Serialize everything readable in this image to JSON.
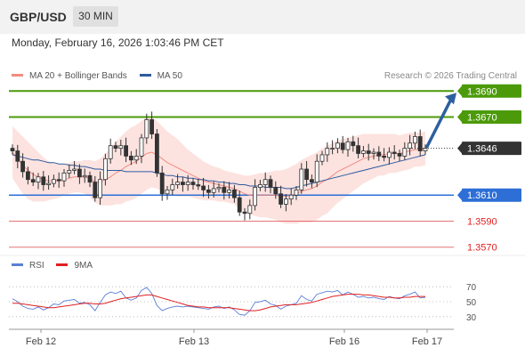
{
  "header": {
    "pair": "GBP/USD",
    "timeframe": "30 MIN"
  },
  "datetime": "Monday, February 16, 2026 1:03:46 PM CET",
  "legend": [
    {
      "label": "MA 20 + Bollinger Bands",
      "color": "#f28b82"
    },
    {
      "label": "MA 50",
      "color": "#2e5a9e"
    }
  ],
  "credit": "Research © 2026 Trading Central",
  "rsi_legend": [
    {
      "label": "RSI",
      "color": "#5b7fd6"
    },
    {
      "label": "9MA",
      "color": "#e02020"
    }
  ],
  "chart_data": {
    "type": "candlestick",
    "x_labels": [
      "Feb 12",
      "Feb 13",
      "Feb 16",
      "Feb 17"
    ],
    "price_levels": [
      {
        "value": 1.369,
        "label": "1.3690",
        "role": "resistance",
        "color": "#4c9a0a"
      },
      {
        "value": 1.367,
        "label": "1.3670",
        "role": "resistance",
        "color": "#4c9a0a"
      },
      {
        "value": 1.3646,
        "label": "1.3646",
        "role": "last",
        "color": "#333333"
      },
      {
        "value": 1.361,
        "label": "1.3610",
        "role": "pivot",
        "color": "#2d6fd6"
      },
      {
        "value": 1.359,
        "label": "1.3590",
        "role": "support",
        "color": "#e05050"
      },
      {
        "value": 1.357,
        "label": "1.3570",
        "role": "support",
        "color": "#e05050"
      }
    ],
    "closes": [
      1.3644,
      1.3636,
      1.3628,
      1.3622,
      1.362,
      1.3624,
      1.3618,
      1.3619,
      1.3622,
      1.3621,
      1.3627,
      1.3629,
      1.363,
      1.3624,
      1.3625,
      1.362,
      1.3608,
      1.3622,
      1.3638,
      1.3648,
      1.3646,
      1.3648,
      1.364,
      1.3637,
      1.364,
      1.3654,
      1.3668,
      1.3657,
      1.3627,
      1.3611,
      1.3614,
      1.3618,
      1.362,
      1.3618,
      1.362,
      1.3618,
      1.3617,
      1.3614,
      1.3612,
      1.3615,
      1.3616,
      1.3612,
      1.3614,
      1.3608,
      1.3597,
      1.3596,
      1.3602,
      1.3616,
      1.3618,
      1.3622,
      1.3616,
      1.3611,
      1.3603,
      1.3607,
      1.361,
      1.3614,
      1.363,
      1.3622,
      1.362,
      1.3636,
      1.3641,
      1.3646,
      1.3646,
      1.365,
      1.3645,
      1.3651,
      1.3648,
      1.3642,
      1.3644,
      1.3642,
      1.3643,
      1.364,
      1.3639,
      1.3643,
      1.3642,
      1.364,
      1.3646,
      1.365,
      1.3655,
      1.3644,
      1.3646
    ],
    "ma20": [
      1.3643,
      1.3638,
      1.3633,
      1.3629,
      1.3626,
      1.3624,
      1.3622,
      1.3621,
      1.3621,
      1.3621,
      1.3622,
      1.3623,
      1.3624,
      1.3624,
      1.3624,
      1.3623,
      1.362,
      1.362,
      1.3622,
      1.3624,
      1.3627,
      1.3629,
      1.3632,
      1.3634,
      1.3636,
      1.3639,
      1.3642,
      1.3643,
      1.3641,
      1.3638,
      1.3635,
      1.3633,
      1.3631,
      1.3629,
      1.3627,
      1.3625,
      1.3623,
      1.3621,
      1.362,
      1.3619,
      1.3618,
      1.3617,
      1.3616,
      1.3615,
      1.3613,
      1.3611,
      1.361,
      1.361,
      1.361,
      1.361,
      1.361,
      1.361,
      1.3609,
      1.3609,
      1.361,
      1.3611,
      1.3613,
      1.3614,
      1.3615,
      1.3617,
      1.362,
      1.3622,
      1.3625,
      1.3628,
      1.363,
      1.3632,
      1.3634,
      1.3636,
      1.3638,
      1.3639,
      1.364,
      1.3641,
      1.3641,
      1.3642,
      1.3642,
      1.3642,
      1.3643,
      1.3644,
      1.3645,
      1.3645,
      1.3646
    ],
    "ma50": [
      1.3641,
      1.364,
      1.3639,
      1.3638,
      1.3637,
      1.3637,
      1.3636,
      1.3635,
      1.3635,
      1.3634,
      1.3634,
      1.3633,
      1.3633,
      1.3632,
      1.3632,
      1.3631,
      1.363,
      1.363,
      1.3629,
      1.3629,
      1.3629,
      1.3629,
      1.3628,
      1.3628,
      1.3628,
      1.3628,
      1.3628,
      1.3628,
      1.3627,
      1.3626,
      1.3625,
      1.3625,
      1.3624,
      1.3624,
      1.3623,
      1.3623,
      1.3622,
      1.3622,
      1.3621,
      1.3621,
      1.362,
      1.362,
      1.3619,
      1.3619,
      1.3618,
      1.3618,
      1.3617,
      1.3617,
      1.3617,
      1.3616,
      1.3616,
      1.3616,
      1.3616,
      1.3615,
      1.3615,
      1.3616,
      1.3617,
      1.3618,
      1.3619,
      1.362,
      1.3621,
      1.3622,
      1.3623,
      1.3624,
      1.3625,
      1.3626,
      1.3627,
      1.3628,
      1.3629,
      1.363,
      1.3631,
      1.3632,
      1.3633,
      1.3634,
      1.3635,
      1.3636,
      1.3637,
      1.3638,
      1.3639,
      1.364,
      1.3641
    ],
    "bb_width": [
      0.002,
      0.0021,
      0.0022,
      0.0022,
      0.0021,
      0.0019,
      0.0017,
      0.0015,
      0.0014,
      0.0013,
      0.0012,
      0.0012,
      0.0012,
      0.0012,
      0.0013,
      0.0014,
      0.0016,
      0.0018,
      0.002,
      0.0022,
      0.0024,
      0.0026,
      0.0027,
      0.0028,
      0.0028,
      0.0028,
      0.0028,
      0.0027,
      0.0026,
      0.0025,
      0.0024,
      0.0023,
      0.0022,
      0.002,
      0.0018,
      0.0017,
      0.0016,
      0.0015,
      0.0014,
      0.0013,
      0.0013,
      0.0012,
      0.0012,
      0.0012,
      0.0013,
      0.0014,
      0.0015,
      0.0016,
      0.0017,
      0.0017,
      0.0018,
      0.0019,
      0.002,
      0.0021,
      0.0022,
      0.0023,
      0.0024,
      0.0025,
      0.0026,
      0.0026,
      0.0026,
      0.0026,
      0.0025,
      0.0024,
      0.0023,
      0.0022,
      0.0021,
      0.002,
      0.0019,
      0.0018,
      0.0017,
      0.0016,
      0.0016,
      0.0015,
      0.0015,
      0.0014,
      0.0014,
      0.0014,
      0.0013,
      0.0013,
      0.0013
    ],
    "rsi": [
      54,
      50,
      44,
      41,
      40,
      43,
      39,
      42,
      47,
      46,
      51,
      52,
      53,
      48,
      49,
      46,
      38,
      49,
      59,
      63,
      61,
      64,
      55,
      52,
      55,
      65,
      69,
      61,
      45,
      38,
      41,
      43,
      44,
      43,
      44,
      43,
      42,
      41,
      40,
      43,
      44,
      41,
      43,
      39,
      33,
      32,
      38,
      49,
      50,
      52,
      47,
      45,
      40,
      44,
      46,
      48,
      58,
      53,
      51,
      60,
      62,
      64,
      63,
      65,
      59,
      63,
      60,
      56,
      57,
      55,
      56,
      54,
      53,
      57,
      55,
      54,
      58,
      60,
      63,
      55,
      56
    ],
    "rsi_ma": [
      48,
      48,
      47,
      46,
      45,
      44,
      43,
      42,
      42,
      43,
      44,
      45,
      46,
      47,
      48,
      48,
      47,
      47,
      48,
      50,
      52,
      54,
      55,
      56,
      57,
      58,
      59,
      59,
      57,
      55,
      53,
      51,
      49,
      47,
      45,
      44,
      43,
      43,
      42,
      42,
      42,
      42,
      42,
      41,
      40,
      39,
      38,
      38,
      39,
      41,
      43,
      44,
      45,
      46,
      46,
      46,
      47,
      48,
      49,
      51,
      53,
      55,
      57,
      58,
      59,
      60,
      60,
      60,
      59,
      59,
      58,
      57,
      56,
      56,
      55,
      55,
      56,
      56,
      57,
      57,
      57
    ],
    "rsi_levels": [
      70,
      50,
      30
    ],
    "y_range": [
      1.3565,
      1.3695
    ]
  }
}
